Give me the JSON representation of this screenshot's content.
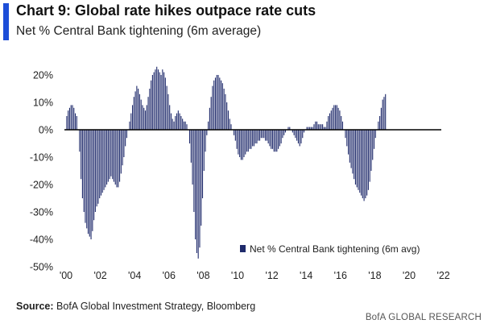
{
  "header": {
    "title": "Chart 9: Global rate hikes outpace rate cuts",
    "subtitle": "Net % Central Bank tightening (6m average)"
  },
  "footer": {
    "source_label": "Source:",
    "source_text": "BofA Global Investment Strategy, Bloomberg",
    "credit": "BofA GLOBAL RESEARCH"
  },
  "colors": {
    "accent": "#1d4ed8",
    "bar": "#1f2a6b",
    "axis": "#000000"
  },
  "chart_data": {
    "type": "bar",
    "title": "",
    "xlabel": "",
    "ylabel": "",
    "ylim": [
      -50,
      25
    ],
    "y_ticks": [
      -50,
      -40,
      -30,
      -20,
      -10,
      0,
      10,
      20
    ],
    "y_tick_labels": [
      "-50%",
      "-40%",
      "-30%",
      "-20%",
      "-10%",
      "0%",
      "10%",
      "20%"
    ],
    "x_tick_years": [
      2000,
      2002,
      2004,
      2006,
      2008,
      2010,
      2012,
      2014,
      2016,
      2018,
      2020,
      2022
    ],
    "x_tick_labels": [
      "'00",
      "'02",
      "'04",
      "'06",
      "'08",
      "'10",
      "'12",
      "'14",
      "'16",
      "'18",
      "'20",
      "'22"
    ],
    "legend": {
      "label": "Net % Central Bank tightening (6m avg)",
      "placement": "bottom-right"
    },
    "grid": false,
    "series": [
      {
        "name": "Net % Central Bank tightening (6m avg)",
        "x_start": "2000-01",
        "frequency": "monthly",
        "values": [
          5,
          7,
          8,
          9,
          9,
          8,
          6,
          5,
          0,
          -8,
          -18,
          -25,
          -30,
          -34,
          -36,
          -38,
          -39,
          -40,
          -37,
          -33,
          -30,
          -28,
          -27,
          -25,
          -24,
          -23,
          -22,
          -21,
          -20,
          -19,
          -18,
          -17,
          -18,
          -19,
          -20,
          -21,
          -21,
          -19,
          -16,
          -13,
          -10,
          -6,
          -3,
          0,
          3,
          6,
          9,
          12,
          14,
          16,
          15,
          13,
          11,
          9,
          8,
          7,
          9,
          12,
          15,
          18,
          20,
          21,
          22,
          23,
          22,
          21,
          20,
          22,
          21,
          19,
          16,
          13,
          9,
          6,
          4,
          3,
          5,
          6,
          7,
          6,
          5,
          4,
          3,
          3,
          2,
          0,
          -5,
          -12,
          -20,
          -30,
          -40,
          -45,
          -47,
          -43,
          -35,
          -25,
          -15,
          -8,
          -2,
          3,
          8,
          12,
          16,
          18,
          19,
          20,
          20,
          19,
          18,
          17,
          15,
          13,
          10,
          7,
          4,
          2,
          0,
          -2,
          -4,
          -7,
          -9,
          -10,
          -11,
          -11,
          -10,
          -9,
          -8,
          -8,
          -7,
          -7,
          -6,
          -6,
          -5,
          -5,
          -4,
          -4,
          -3,
          -3,
          -3,
          -4,
          -4,
          -5,
          -6,
          -7,
          -7,
          -8,
          -8,
          -8,
          -7,
          -6,
          -5,
          -3,
          -2,
          -1,
          0,
          1,
          1,
          0,
          -1,
          -2,
          -3,
          -4,
          -5,
          -6,
          -5,
          -3,
          -1,
          0,
          1,
          1,
          1,
          1,
          1,
          2,
          3,
          3,
          2,
          2,
          2,
          2,
          1,
          1,
          3,
          5,
          6,
          7,
          8,
          9,
          9,
          9,
          8,
          7,
          5,
          3,
          0,
          -3,
          -6,
          -9,
          -12,
          -14,
          -16,
          -18,
          -20,
          -21,
          -22,
          -23,
          -24,
          -25,
          -26,
          -25,
          -24,
          -22,
          -19,
          -15,
          -11,
          -7,
          -3,
          0,
          3,
          5,
          8,
          11,
          12,
          13
        ]
      }
    ]
  }
}
